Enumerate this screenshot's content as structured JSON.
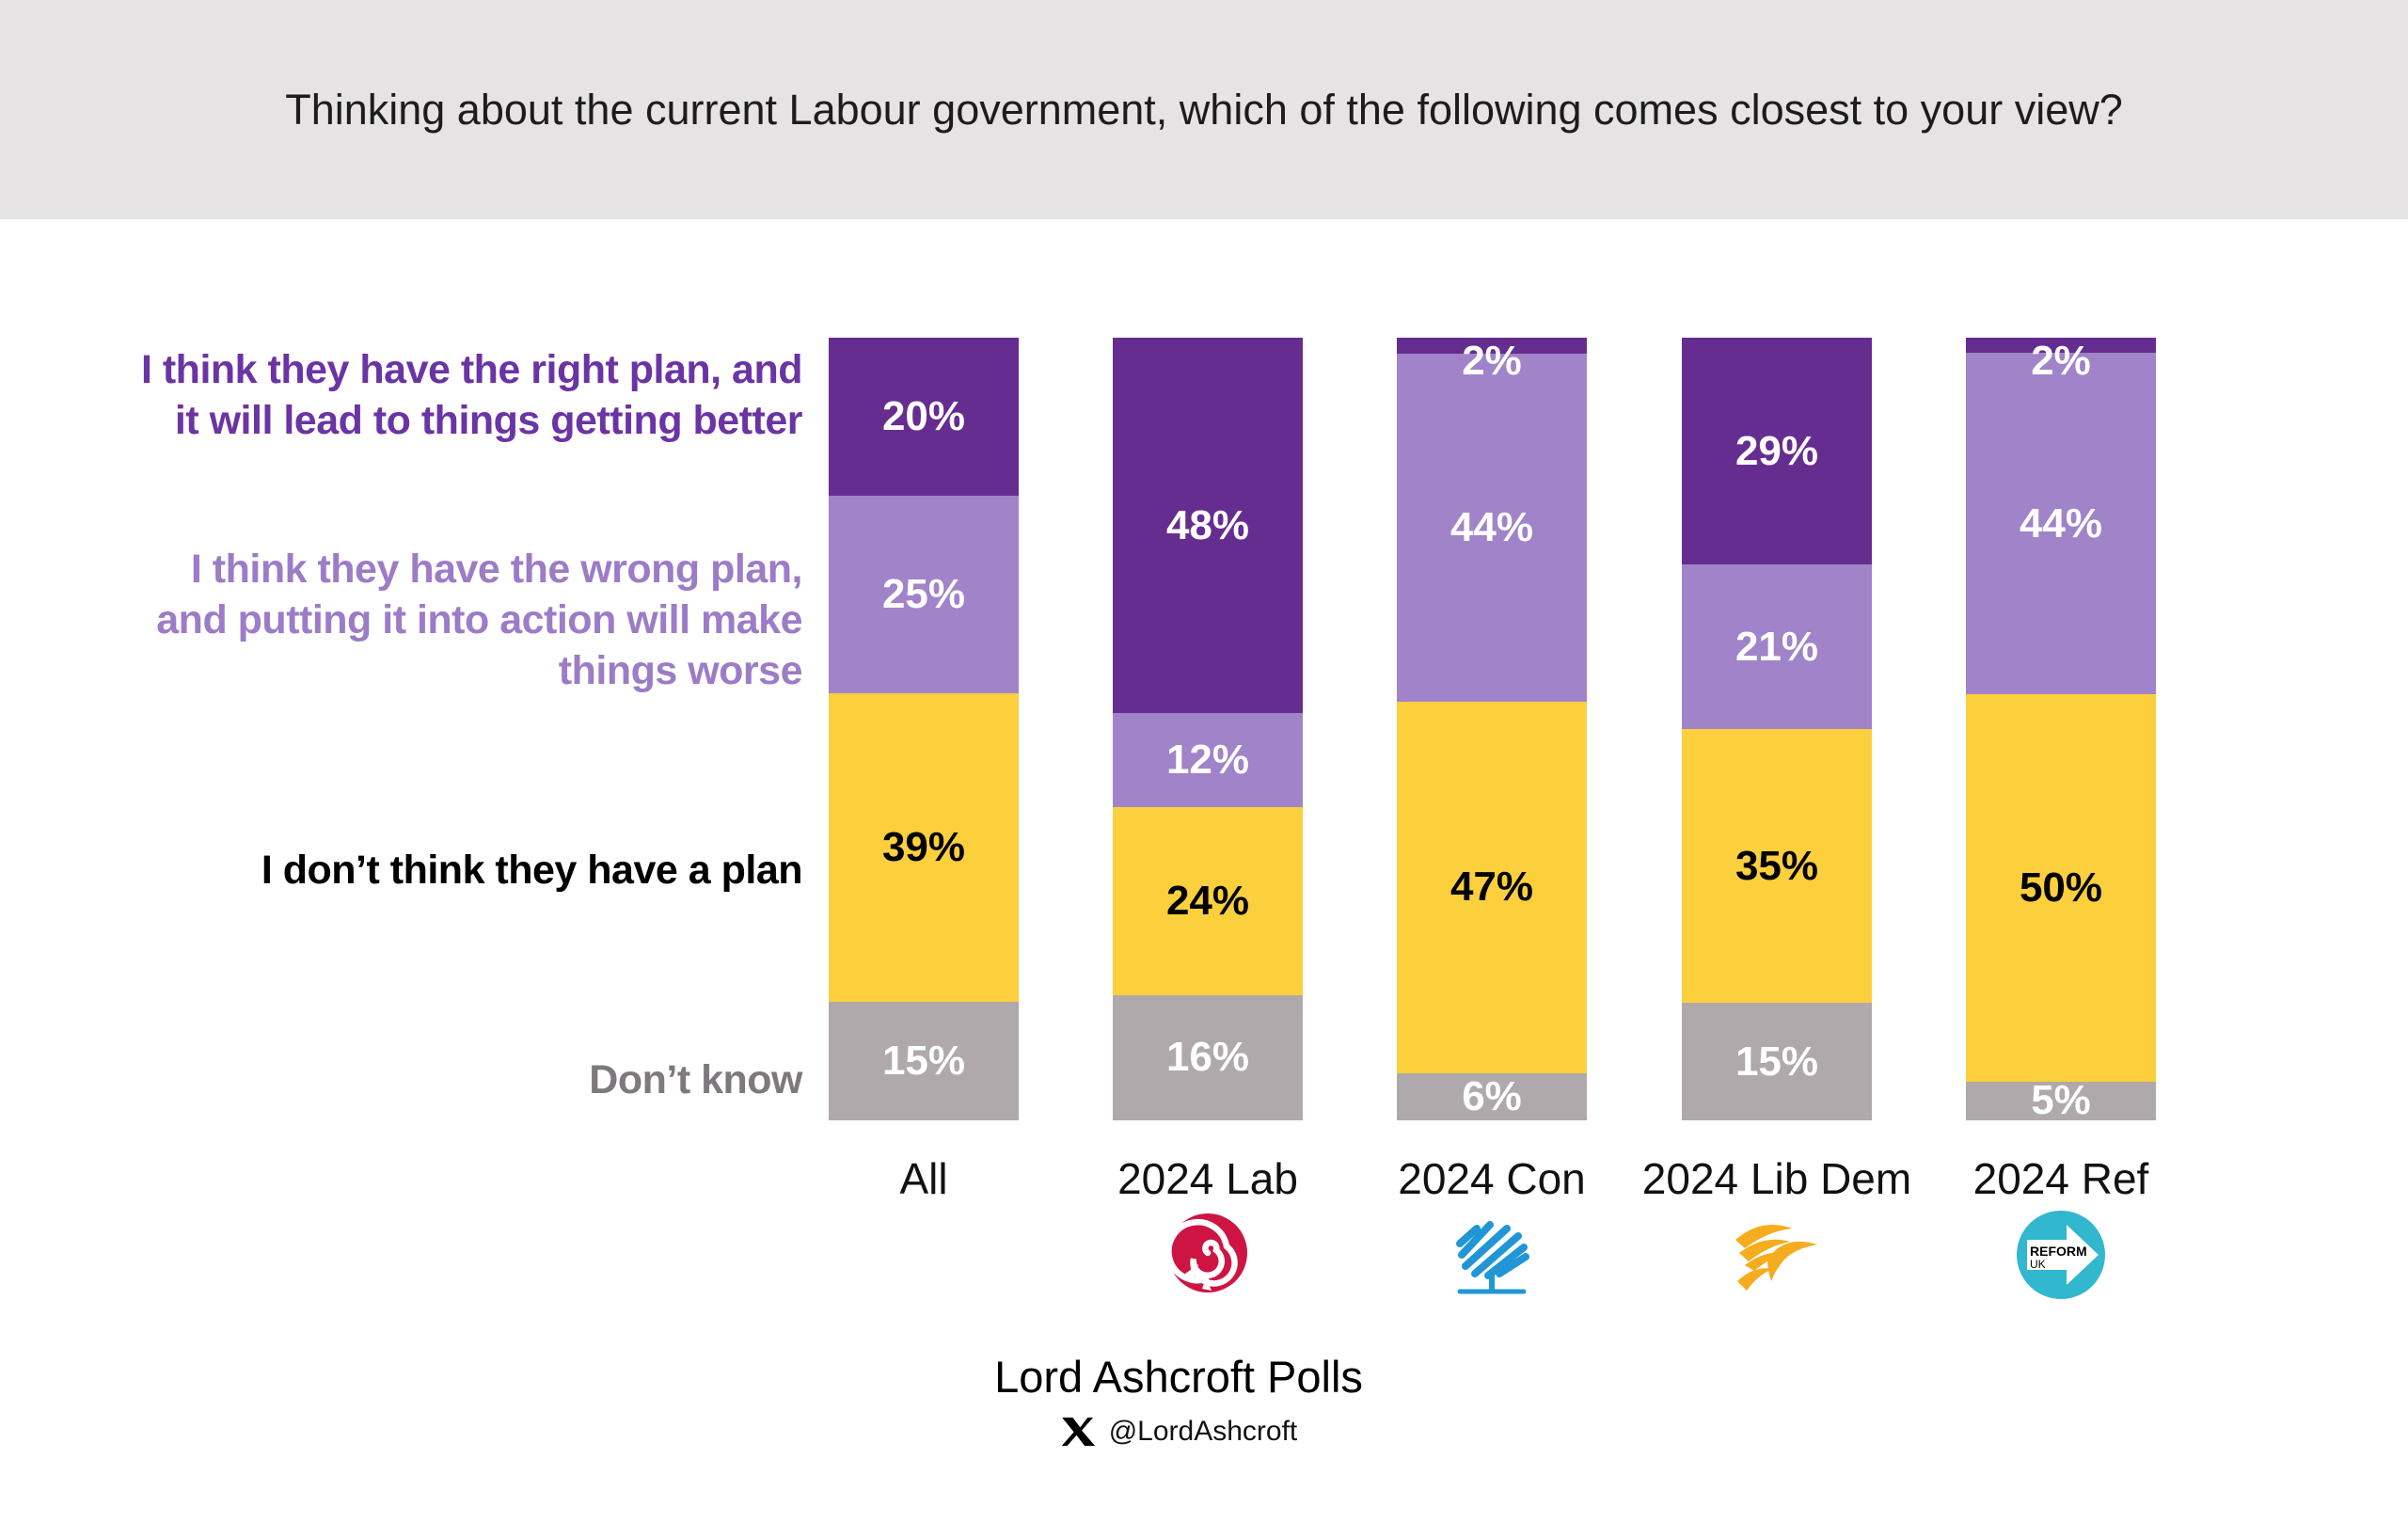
{
  "header": {
    "title": "Thinking about the current Labour government, which of the following comes closest to your view?",
    "background": "#E6E3E4"
  },
  "chart_data": {
    "type": "bar",
    "variant": "stacked-vertical-percent",
    "title": "Thinking about the current Labour government, which of the following comes closest to your view?",
    "value_suffix": "%",
    "grid": false,
    "legend_position": "left",
    "categories": [
      {
        "label": "All",
        "logo": null
      },
      {
        "label": "2024 Lab",
        "logo": "labour-rose-icon"
      },
      {
        "label": "2024 Con",
        "logo": "conservative-tree-icon"
      },
      {
        "label": "2024 Lib Dem",
        "logo": "libdem-bird-icon"
      },
      {
        "label": "2024 Ref",
        "logo": "reform-uk-icon"
      }
    ],
    "series": [
      {
        "name": "I think they have the right plan, and it will lead to things getting better",
        "legend_lines": [
          "I think they have the right plan, and",
          "it will lead to things getting better"
        ],
        "color": "#662D91",
        "text_color": "#FFFFFF",
        "legend_color": "#6B34A4",
        "values": [
          20,
          48,
          2,
          29,
          2
        ]
      },
      {
        "name": "I think they have the wrong plan, and putting it into action will make things worse",
        "legend_lines": [
          "I think they have the wrong plan,",
          "and putting it into action will make",
          "things worse"
        ],
        "color": "#A083C8",
        "text_color": "#FFFFFF",
        "legend_color": "#9C7CC7",
        "values": [
          25,
          12,
          44,
          21,
          44
        ]
      },
      {
        "name": "I don’t think they have a plan",
        "legend_lines": [
          "I don’t think they have a plan"
        ],
        "color": "#FCCF3D",
        "text_color": "#000000",
        "legend_color": "#000000",
        "values": [
          39,
          24,
          47,
          35,
          50
        ]
      },
      {
        "name": "Don’t know",
        "legend_lines": [
          "Don’t know"
        ],
        "color": "#AFA9AC",
        "text_color": "#FFFFFF",
        "legend_color": "#7E797C",
        "values": [
          15,
          16,
          6,
          15,
          5
        ]
      }
    ]
  },
  "footer": {
    "source": "Lord Ashcroft Polls",
    "x_handle": "@LordAshcroft"
  }
}
